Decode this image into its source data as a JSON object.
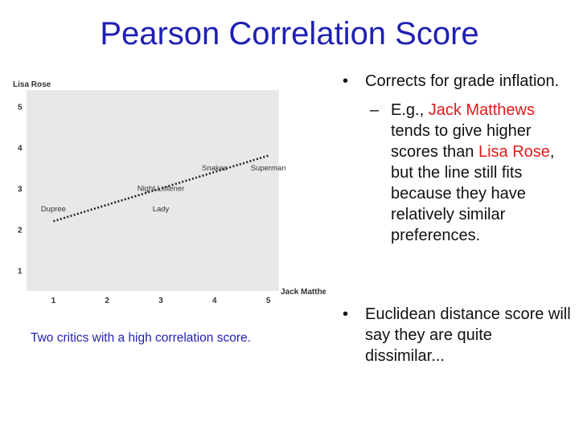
{
  "slide": {
    "title": "Pearson Correlation Score",
    "caption": "Two critics with a high correlation score."
  },
  "bullets": {
    "b1_text": "Corrects for grade inflation.",
    "sub1_prefix": "E.g., ",
    "sub1_red1": "Jack Matthews",
    "sub1_mid": " tends to give higher scores than ",
    "sub1_red2": "Lisa Rose",
    "sub1_suffix": ", but the line still fits because they have relatively similar preferences.",
    "b2_text": "Euclidean distance score will say they are quite dissimilar..."
  },
  "colors": {
    "title": "#1f1fb4",
    "caption": "#1f1fb4",
    "highlight": "#e01b1b",
    "plot_background": "#e8e8e8"
  },
  "chart_data": {
    "type": "scatter",
    "xlabel": "Jack Matthews",
    "ylabel": "Lisa Rose",
    "xlim": [
      0.5,
      5.2
    ],
    "ylim": [
      0.5,
      5.4
    ],
    "x_ticks": [
      1,
      2,
      3,
      4,
      5
    ],
    "y_ticks": [
      1,
      2,
      3,
      4,
      5
    ],
    "grid": false,
    "points": [
      {
        "label": "Dupree",
        "x": 1.0,
        "y": 2.5
      },
      {
        "label": "Night Listener",
        "x": 3.0,
        "y": 3.0
      },
      {
        "label": "Lady",
        "x": 3.0,
        "y": 2.5
      },
      {
        "label": "Snakes",
        "x": 4.0,
        "y": 3.5
      },
      {
        "label": "Superman",
        "x": 5.0,
        "y": 3.5
      }
    ],
    "trendline": {
      "style": "dotted",
      "x": [
        1.0,
        5.0
      ],
      "y": [
        2.2,
        3.8
      ]
    }
  }
}
